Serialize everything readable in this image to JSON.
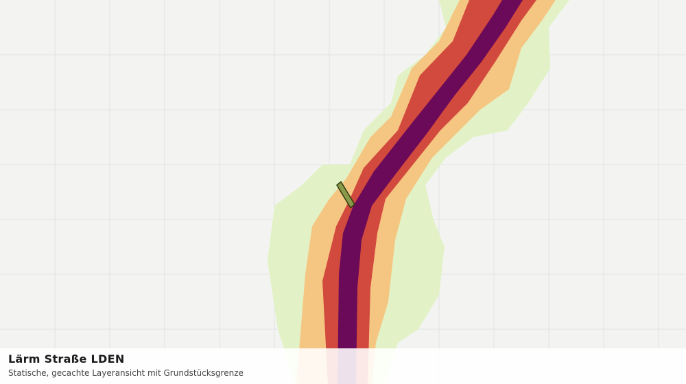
{
  "legend": {
    "title": "Lärm Straße LDEN",
    "subtitle": "Statische, gecachte Layeransicht mit Grundstücksgrenze"
  }
}
